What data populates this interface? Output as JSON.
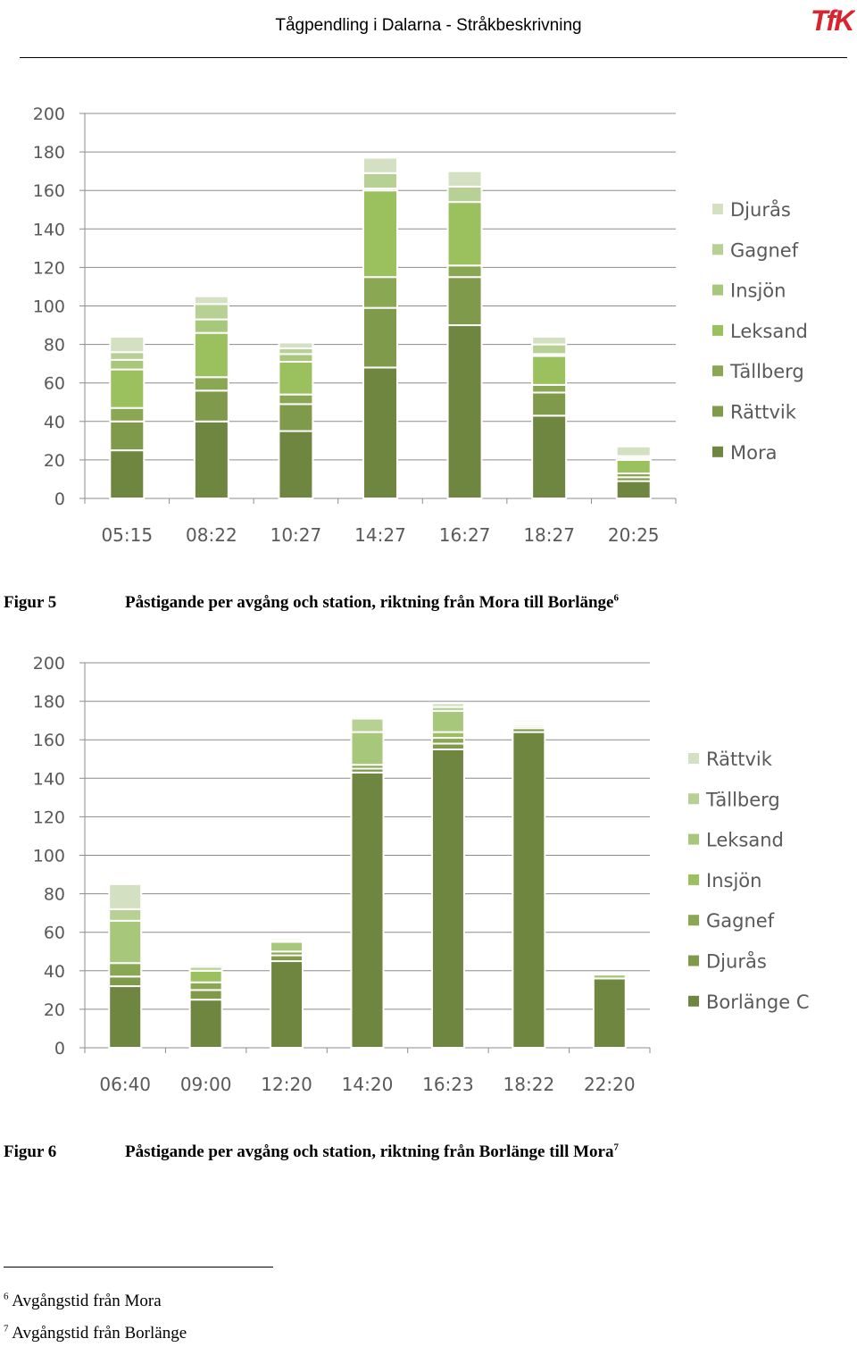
{
  "header": {
    "title": "Tågpendling i Dalarna - Stråkbeskrivning",
    "logo_text": "TfK",
    "logo_color": "#d9232e"
  },
  "chart_data": [
    {
      "type": "bar",
      "stacked": true,
      "categories": [
        "05:15",
        "08:22",
        "10:27",
        "14:27",
        "16:27",
        "18:27",
        "20:25"
      ],
      "ylim": [
        0,
        200
      ],
      "yticks": [
        0,
        20,
        40,
        60,
        80,
        100,
        120,
        140,
        160,
        180,
        200
      ],
      "grid": true,
      "legend_position": "right",
      "series": [
        {
          "name": "Mora",
          "color": "#6f8641",
          "values": [
            25,
            40,
            35,
            68,
            90,
            43,
            9
          ]
        },
        {
          "name": "Rättvik",
          "color": "#7f9a4a",
          "values": [
            15,
            16,
            14,
            31,
            25,
            12,
            2
          ]
        },
        {
          "name": "Tällberg",
          "color": "#8aa853",
          "values": [
            7,
            7,
            5,
            16,
            6,
            4,
            2
          ]
        },
        {
          "name": "Leksand",
          "color": "#9bc15e",
          "values": [
            20,
            23,
            17,
            45,
            33,
            15,
            7
          ]
        },
        {
          "name": "Insjön",
          "color": "#a7c77a",
          "values": [
            5,
            7,
            4,
            1,
            0,
            1,
            1
          ]
        },
        {
          "name": "Gagnef",
          "color": "#b7d094",
          "values": [
            4,
            8,
            3,
            8,
            8,
            5,
            1
          ]
        },
        {
          "name": "Djurås",
          "color": "#d3e0c1",
          "values": [
            8,
            4,
            3,
            8,
            8,
            4,
            5
          ]
        }
      ]
    },
    {
      "type": "bar",
      "stacked": true,
      "categories": [
        "06:40",
        "09:00",
        "12:20",
        "14:20",
        "16:23",
        "18:22",
        "22:20"
      ],
      "ylim": [
        0,
        200
      ],
      "yticks": [
        0,
        20,
        40,
        60,
        80,
        100,
        120,
        140,
        160,
        180,
        200
      ],
      "grid": true,
      "legend_position": "right",
      "series": [
        {
          "name": "Borlänge C",
          "color": "#6f8641",
          "values": [
            32,
            25,
            45,
            143,
            155,
            164,
            36
          ]
        },
        {
          "name": "Djurås",
          "color": "#7f9a4a",
          "values": [
            5,
            5,
            3,
            2,
            3,
            2,
            0
          ]
        },
        {
          "name": "Gagnef",
          "color": "#8aa853",
          "values": [
            7,
            4,
            2,
            2,
            3,
            1,
            0
          ]
        },
        {
          "name": "Insjön",
          "color": "#9bc15e",
          "values": [
            0,
            6,
            0,
            0,
            3,
            1,
            0
          ]
        },
        {
          "name": "Leksand",
          "color": "#a7c77a",
          "values": [
            22,
            0,
            5,
            17,
            11,
            1,
            2
          ]
        },
        {
          "name": "Tällberg",
          "color": "#b7d094",
          "values": [
            6,
            2,
            1,
            7,
            2,
            0,
            0
          ]
        },
        {
          "name": "Rättvik",
          "color": "#d3e0c1",
          "values": [
            13,
            1,
            1,
            1,
            2,
            1,
            0
          ]
        }
      ]
    }
  ],
  "figures": [
    {
      "number": "Figur 5",
      "caption": "Påstigande per avgång och station, riktning från Mora till Borlänge",
      "footnote_ref": "6"
    },
    {
      "number": "Figur 6",
      "caption": "Påstigande per avgång och station, riktning från Borlänge till Mora",
      "footnote_ref": "7"
    }
  ],
  "footnotes": [
    {
      "ref": "6",
      "text": "Avgångstid från Mora"
    },
    {
      "ref": "7",
      "text": "Avgångstid från Borlänge"
    }
  ]
}
